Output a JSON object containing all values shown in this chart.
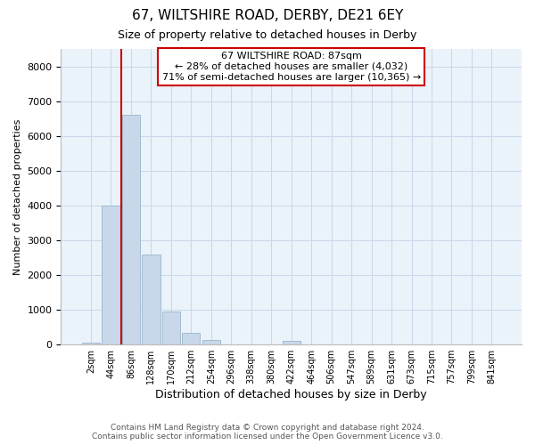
{
  "title1": "67, WILTSHIRE ROAD, DERBY, DE21 6EY",
  "title2": "Size of property relative to detached houses in Derby",
  "xlabel": "Distribution of detached houses by size in Derby",
  "ylabel": "Number of detached properties",
  "bin_labels": [
    "2sqm",
    "44sqm",
    "86sqm",
    "128sqm",
    "170sqm",
    "212sqm",
    "254sqm",
    "296sqm",
    "338sqm",
    "380sqm",
    "422sqm",
    "464sqm",
    "506sqm",
    "547sqm",
    "589sqm",
    "631sqm",
    "673sqm",
    "715sqm",
    "757sqm",
    "799sqm",
    "841sqm"
  ],
  "bar_values": [
    50,
    4000,
    6600,
    2600,
    950,
    330,
    120,
    0,
    0,
    0,
    100,
    0,
    0,
    0,
    0,
    0,
    0,
    0,
    0,
    0,
    0
  ],
  "bar_color": "#c8d8ea",
  "bar_edge_color": "#9ab5cc",
  "red_line_x": 2.0,
  "annotation_text1": "67 WILTSHIRE ROAD: 87sqm",
  "annotation_text2": "← 28% of detached houses are smaller (4,032)",
  "annotation_text3": "71% of semi-detached houses are larger (10,365) →",
  "annotation_box_color": "#ffffff",
  "annotation_box_edge_color": "#cc0000",
  "red_line_color": "#cc0000",
  "ylim": [
    0,
    8500
  ],
  "yticks": [
    0,
    1000,
    2000,
    3000,
    4000,
    5000,
    6000,
    7000,
    8000
  ],
  "grid_color": "#c8d8e8",
  "background_color": "#eaf2fa",
  "footer1": "Contains HM Land Registry data © Crown copyright and database right 2024.",
  "footer2": "Contains public sector information licensed under the Open Government Licence v3.0."
}
